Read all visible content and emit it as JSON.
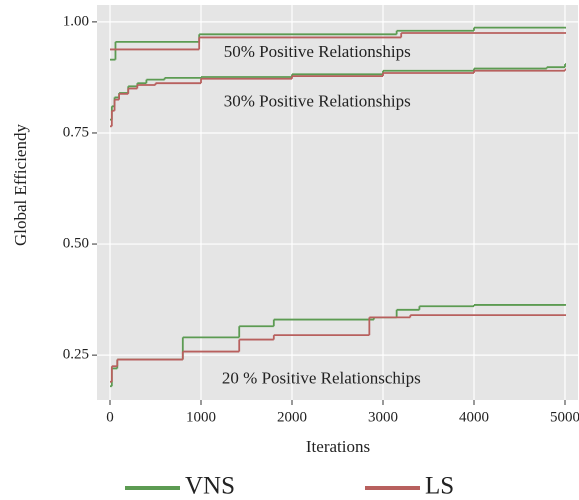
{
  "chart_data": {
    "type": "step",
    "x_label": "Iterations",
    "y_label": "Global Efficiendy",
    "xlim": [
      -143,
      5143
    ],
    "ylim": [
      0.149,
      1.038
    ],
    "xticks": [
      0,
      1000,
      2000,
      3000,
      4000,
      5000
    ],
    "yticks": [
      {
        "value": 0.25,
        "label": "0.25"
      },
      {
        "value": 0.5,
        "label": "0.50"
      },
      {
        "value": 0.75,
        "label": "0.75"
      },
      {
        "value": 1.0,
        "label": "1.00"
      }
    ],
    "grid": true,
    "legend": "bottom",
    "series": [
      {
        "name": "VNS",
        "color": "#5c9b52",
        "x": [
          0,
          60,
          980,
          3150,
          4000,
          5000
        ],
        "values": [
          0.915,
          0.955,
          0.972,
          0.98,
          0.987,
          0.987
        ]
      },
      {
        "name": "LS",
        "color": "#b8605e",
        "x": [
          0,
          980,
          3200,
          5000
        ],
        "values": [
          0.938,
          0.965,
          0.975,
          0.975
        ]
      },
      {
        "name": "VNS",
        "color": "#5c9b52",
        "x": [
          0,
          20,
          50,
          100,
          200,
          300,
          400,
          600,
          1000,
          2000,
          3000,
          4000,
          4800,
          5000
        ],
        "values": [
          0.78,
          0.81,
          0.83,
          0.84,
          0.855,
          0.862,
          0.87,
          0.874,
          0.876,
          0.882,
          0.89,
          0.895,
          0.898,
          0.905
        ]
      },
      {
        "name": "LS",
        "color": "#b8605e",
        "x": [
          0,
          20,
          50,
          100,
          200,
          300,
          500,
          1000,
          2000,
          3000,
          4000,
          5000
        ],
        "values": [
          0.765,
          0.8,
          0.825,
          0.838,
          0.85,
          0.858,
          0.862,
          0.872,
          0.878,
          0.885,
          0.89,
          0.893
        ]
      },
      {
        "name": "VNS",
        "color": "#5c9b52",
        "x": [
          0,
          20,
          80,
          800,
          1420,
          1800,
          2900,
          3150,
          3400,
          4000,
          5000
        ],
        "values": [
          0.18,
          0.22,
          0.24,
          0.29,
          0.315,
          0.33,
          0.335,
          0.352,
          0.36,
          0.363,
          0.363
        ]
      },
      {
        "name": "LS",
        "color": "#b8605e",
        "x": [
          0,
          20,
          80,
          800,
          1420,
          1800,
          2850,
          3300,
          5000
        ],
        "values": [
          0.19,
          0.225,
          0.24,
          0.258,
          0.285,
          0.295,
          0.335,
          0.34,
          0.34
        ]
      }
    ],
    "annotations": [
      {
        "text": "50% Positive Relationships",
        "x": 1250,
        "y": 0.93
      },
      {
        "text": "30% Positive Relationships",
        "x": 1250,
        "y": 0.818
      },
      {
        "text": "20 % Positive Relationschips",
        "x": 1230,
        "y": 0.195
      }
    ]
  }
}
